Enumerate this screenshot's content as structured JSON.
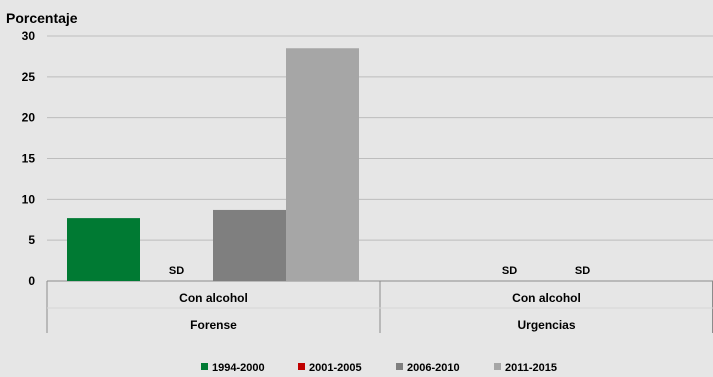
{
  "chart_data": {
    "type": "bar",
    "ylabel": "Porcentaje",
    "ylim": [
      0,
      30
    ],
    "yticks": [
      0,
      5,
      10,
      15,
      20,
      25,
      30
    ],
    "grid": true,
    "legend_position": "bottom",
    "groups": [
      {
        "category": "Con alcohol",
        "group": "Forense"
      },
      {
        "category": "Con alcohol",
        "group": "Urgencias"
      }
    ],
    "series": [
      {
        "name": "1994-2000",
        "color": "#007a33",
        "values": [
          7.7,
          null
        ]
      },
      {
        "name": "2001-2005",
        "color": "#c00000",
        "values": [
          null,
          null
        ]
      },
      {
        "name": "2006-2010",
        "color": "#7f7f7f",
        "values": [
          8.7,
          null
        ]
      },
      {
        "name": "2011-2015",
        "color": "#a6a6a6",
        "values": [
          28.5,
          null
        ]
      }
    ],
    "missing_label": "SD",
    "missing_marks": [
      {
        "series": 1,
        "group": 0
      },
      {
        "series": 1,
        "group": 1
      },
      {
        "series": 2,
        "group": 1
      }
    ]
  }
}
